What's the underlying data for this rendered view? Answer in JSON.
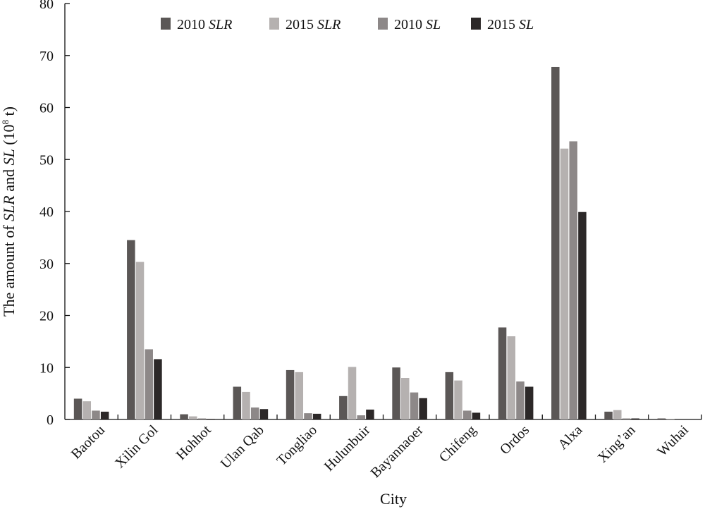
{
  "chart_data": {
    "type": "bar",
    "title": "",
    "xlabel": "City",
    "ylabel": {
      "prefix": "The amount of ",
      "term1": "SLR",
      "middle": " and ",
      "term2": "SL",
      "unit_open": " (10",
      "unit_exp": "8",
      "unit_close": " t)"
    },
    "ylim": [
      0,
      80
    ],
    "yticks": [
      0,
      10,
      20,
      30,
      40,
      50,
      60,
      70,
      80
    ],
    "grid": false,
    "legend_position": "top-center",
    "categories": [
      "Baotou",
      "Xilin Gol",
      "Hohhot",
      "Ulan Qab",
      "Tongliao",
      "Hulunbuir",
      "Bayannaoer",
      "Chifeng",
      "Ordos",
      "Alxa",
      "Xing’an",
      "Wuhai"
    ],
    "series": [
      {
        "name_year": "2010",
        "name_term": "SLR",
        "color": "#5b5756",
        "values": [
          4.0,
          34.5,
          1.0,
          6.3,
          9.5,
          4.5,
          10.0,
          9.1,
          17.7,
          67.8,
          1.5,
          0.2
        ]
      },
      {
        "name_year": "2015",
        "name_term": "SLR",
        "color": "#b5b1b0",
        "values": [
          3.5,
          30.3,
          0.6,
          5.3,
          9.1,
          10.1,
          8.0,
          7.5,
          16.0,
          52.1,
          1.8,
          0.1
        ]
      },
      {
        "name_year": "2010",
        "name_term": "SL",
        "color": "#8d8888",
        "values": [
          1.7,
          13.5,
          0.2,
          2.3,
          1.2,
          0.8,
          5.2,
          1.7,
          7.3,
          53.5,
          0.2,
          0.0
        ]
      },
      {
        "name_year": "2015",
        "name_term": "SL",
        "color": "#2c2828",
        "values": [
          1.5,
          11.6,
          0.1,
          2.0,
          1.1,
          1.9,
          4.1,
          1.3,
          6.3,
          39.9,
          0.2,
          0.0
        ]
      }
    ]
  }
}
